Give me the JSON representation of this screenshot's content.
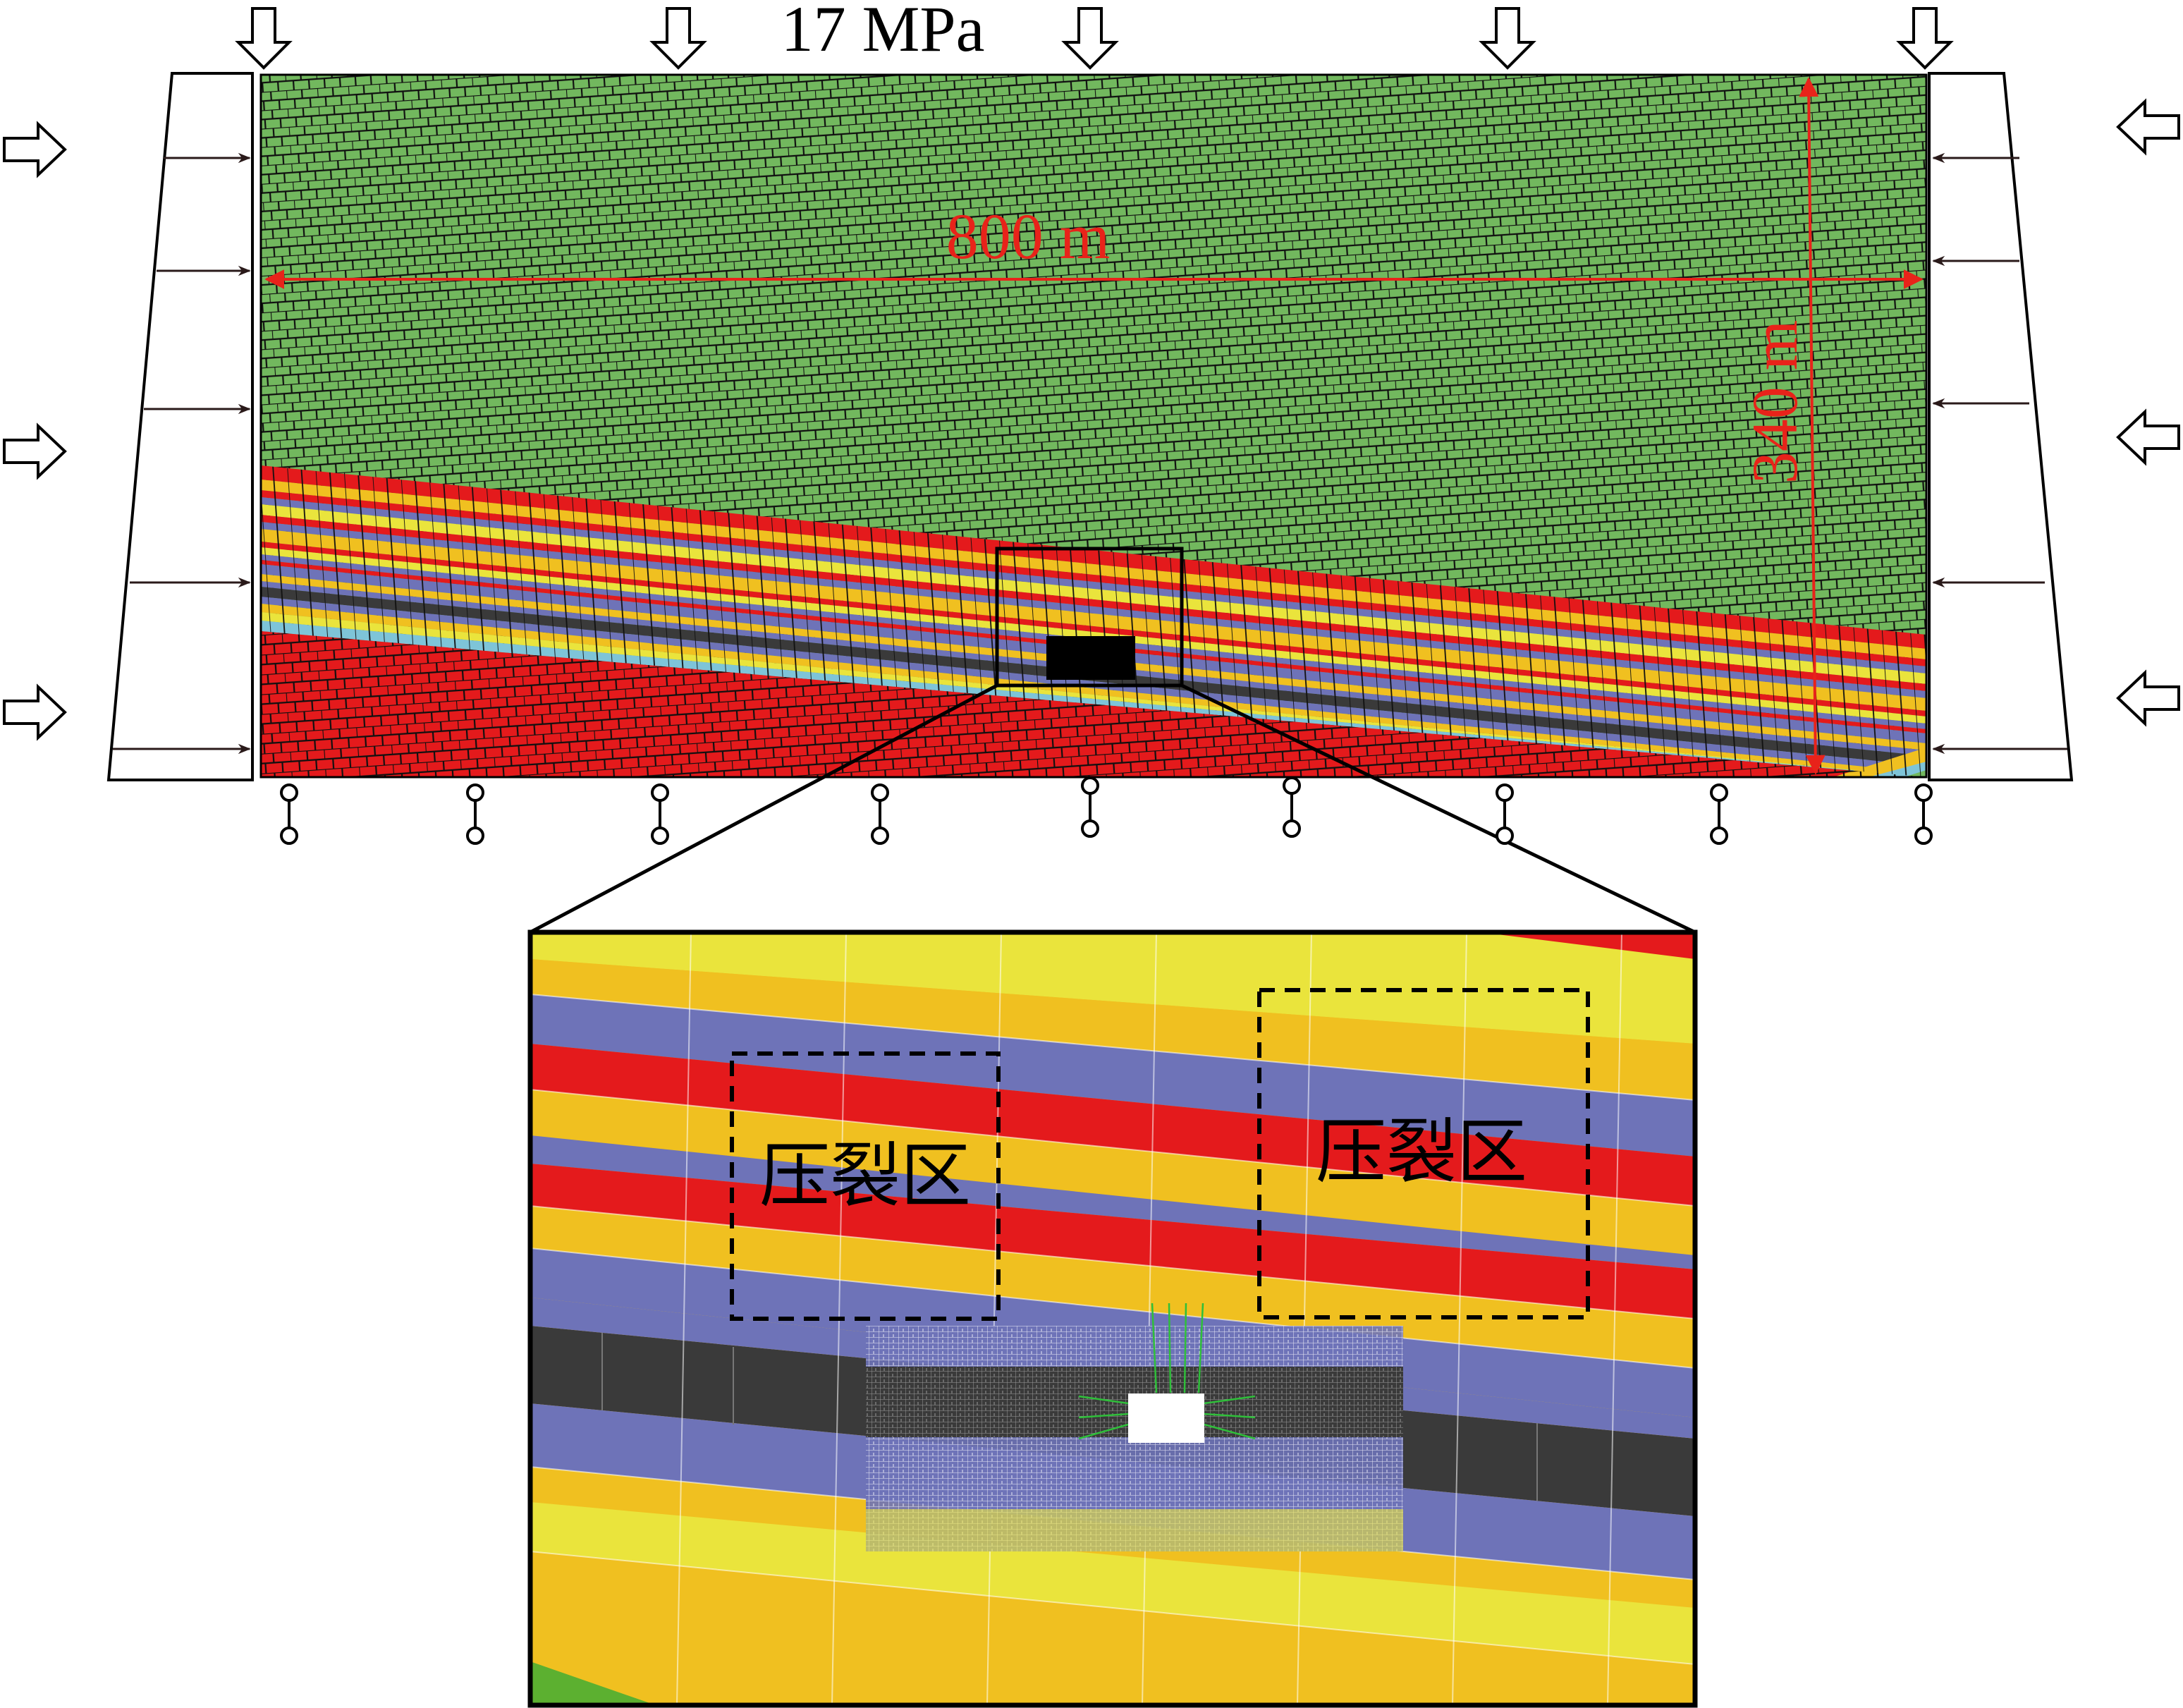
{
  "labels": {
    "top_load": "17 MPa",
    "width": "800 m",
    "height": "340 m",
    "zone_left": "压裂区",
    "zone_right": "压裂区"
  },
  "colors": {
    "overburden": "#72b85e",
    "red": "#e41a1c",
    "yellow": "#f0c020",
    "lightyellow": "#eae43c",
    "blue": "#6e73b8",
    "coal": "#3a3a3a",
    "cyan": "#7ec4d8",
    "dimension": "#e8231a",
    "mesh": "#101010"
  },
  "icons": {
    "top_load_arrows": "down-arrow-outline-icon",
    "side_load_arrows": "horizontal-arrow-outline-icon",
    "supports": "roller-support-icon"
  }
}
